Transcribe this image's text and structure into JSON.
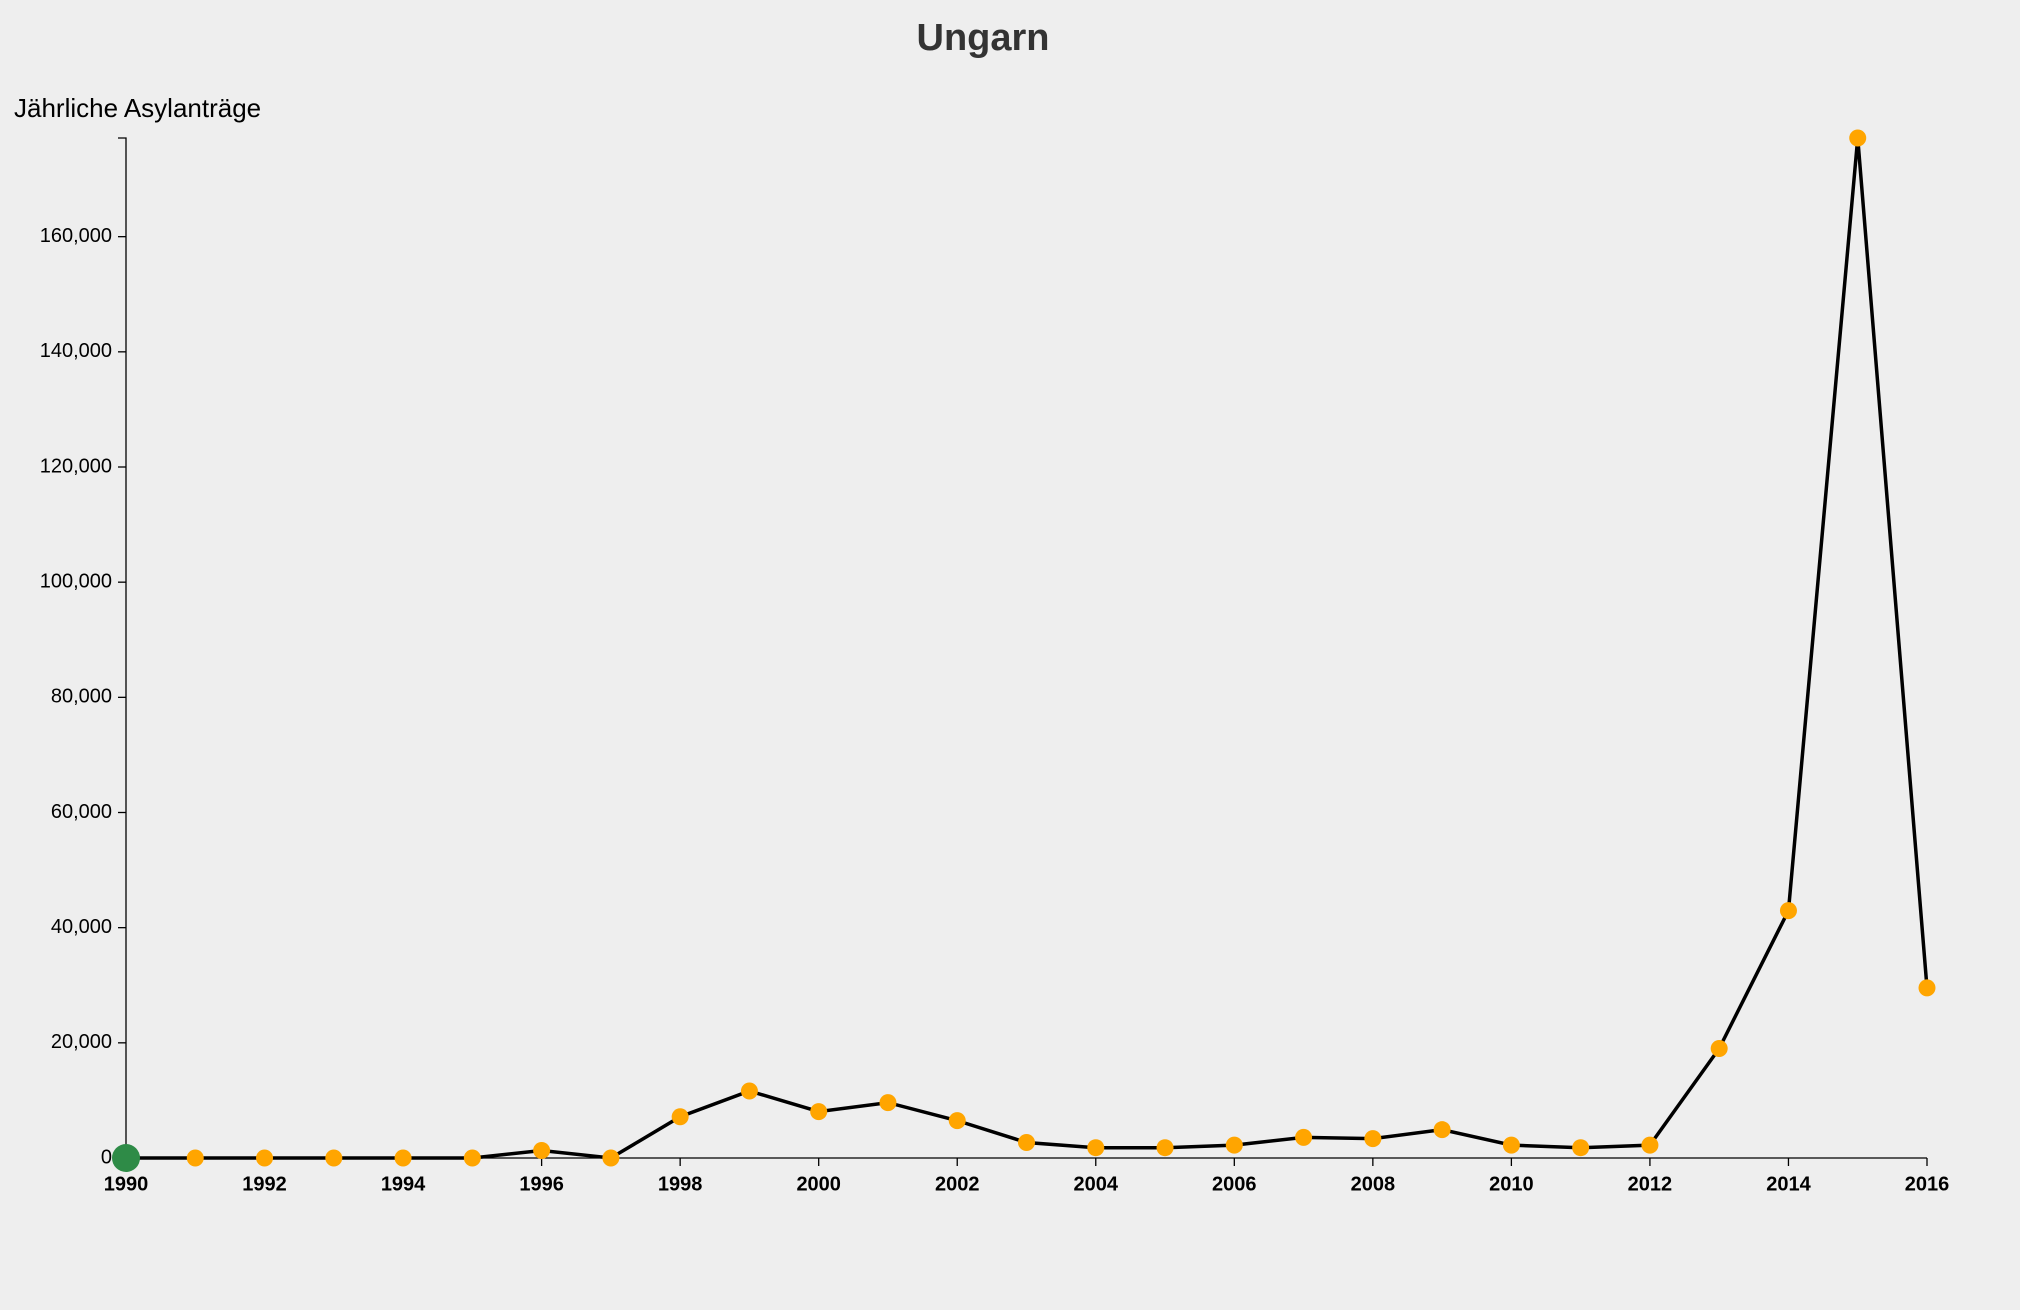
{
  "chart_data": {
    "type": "line",
    "title": "Ungarn",
    "y_label": "Jährliche Asylanträge",
    "x": [
      1990,
      1991,
      1992,
      1993,
      1994,
      1995,
      1996,
      1997,
      1998,
      1999,
      2000,
      2001,
      2002,
      2003,
      2004,
      2005,
      2006,
      2007,
      2008,
      2009,
      2010,
      2011,
      2012,
      2013,
      2014,
      2015,
      2016
    ],
    "values": [
      0,
      0,
      0,
      0,
      0,
      0,
      1300,
      0,
      7160,
      11640,
      8060,
      9620,
      6490,
      2690,
      1790,
      1790,
      2240,
      3580,
      3360,
      4920,
      2240,
      1790,
      2240,
      19020,
      42960,
      177135,
      29540
    ],
    "color": "#000000",
    "marker_colors": [
      "#2e8b47",
      "#ffa500",
      "#ffa500",
      "#ffa500",
      "#ffa500",
      "#ffa500",
      "#ffa500",
      "#ffa500",
      "#ffa500",
      "#ffa500",
      "#ffa500",
      "#ffa500",
      "#ffa500",
      "#ffa500",
      "#ffa500",
      "#ffa500",
      "#ffa500",
      "#ffa500",
      "#ffa500",
      "#ffa500",
      "#ffa500",
      "#ffa500",
      "#ffa500",
      "#ffa500",
      "#ffa500",
      "#ffa500",
      "#ffa500"
    ],
    "xlim": [
      1990,
      2016
    ],
    "xticks": [
      1990,
      1992,
      1994,
      1996,
      1998,
      2000,
      2002,
      2004,
      2006,
      2008,
      2010,
      2012,
      2014,
      2016
    ],
    "ylim": [
      0,
      177135
    ],
    "yticks": [
      0,
      {
        "value": 20000,
        "label": "20,000"
      },
      {
        "value": 40000,
        "label": "40,000"
      },
      {
        "value": 60000,
        "label": "60,000"
      },
      {
        "value": 80000,
        "label": "80,000"
      },
      {
        "value": 100000,
        "label": "100,000"
      },
      {
        "value": 120000,
        "label": "120,000"
      },
      {
        "value": 140000,
        "label": "140,000"
      },
      {
        "value": 160000,
        "label": "160,000"
      }
    ],
    "grid": false
  }
}
